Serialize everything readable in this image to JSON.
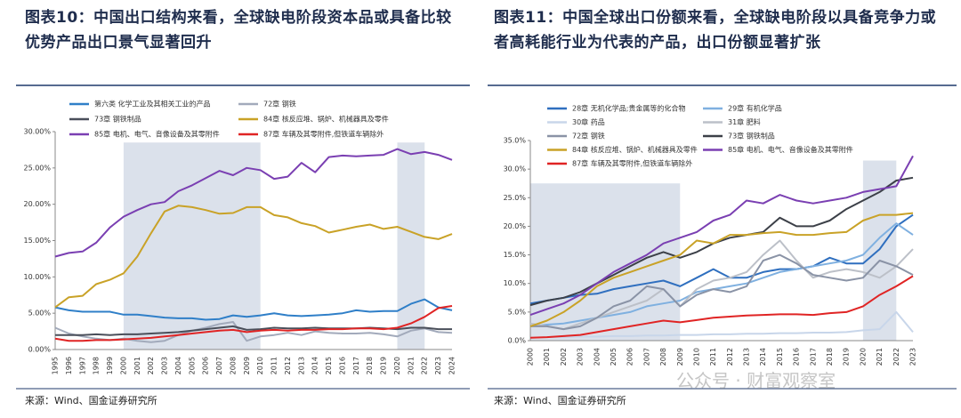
{
  "chart_data": [
    {
      "type": "line",
      "title": "图表10：中国出口结构来看，全球缺电阶段资本品或具备比较优势产品出口景气显著回升",
      "source": "来源：Wind、国金证券研究所",
      "x": [
        1995,
        1996,
        1997,
        1998,
        1999,
        2000,
        2001,
        2002,
        2003,
        2004,
        2005,
        2006,
        2007,
        2008,
        2009,
        2010,
        2011,
        2012,
        2013,
        2014,
        2015,
        2016,
        2017,
        2018,
        2019,
        2020,
        2021,
        2022,
        2023,
        2024
      ],
      "xlim": [
        1995,
        2024
      ],
      "ylim": [
        0,
        30
      ],
      "yticks": [
        {
          "value": 0,
          "label": "0.00%"
        },
        {
          "value": 5,
          "label": "5.00%"
        },
        {
          "value": 10,
          "label": "10.00%"
        },
        {
          "value": 15,
          "label": "15.00%"
        },
        {
          "value": 20,
          "label": "20.00%"
        },
        {
          "value": 25,
          "label": "25.00%"
        },
        {
          "value": 30,
          "label": "30.00%"
        }
      ],
      "shaded": [
        {
          "from": 2000,
          "to": 2010,
          "top": 28.5
        },
        {
          "from": 2020,
          "to": 2022,
          "top": 28.5
        }
      ],
      "series": [
        {
          "name": "第六类 化学工业及其相关工业的产品",
          "color": "#2f7fc8",
          "values": [
            5.8,
            5.4,
            5.2,
            5.2,
            5.2,
            4.8,
            4.8,
            4.6,
            4.4,
            4.3,
            4.3,
            4.1,
            4.2,
            4.7,
            4.5,
            4.7,
            5.0,
            4.7,
            4.6,
            4.7,
            4.8,
            5.0,
            5.4,
            5.2,
            5.3,
            5.3,
            6.3,
            6.9,
            5.8,
            5.4
          ]
        },
        {
          "name": "72章 钢铁",
          "color": "#a2aabb",
          "values": [
            3.0,
            2.2,
            1.8,
            1.5,
            1.3,
            1.5,
            1.2,
            1.0,
            1.2,
            2.0,
            2.6,
            3.0,
            3.5,
            3.8,
            1.2,
            1.8,
            2.0,
            2.3,
            2.0,
            2.5,
            2.3,
            2.2,
            2.2,
            2.3,
            2.1,
            1.8,
            2.6,
            2.9,
            2.4,
            2.3
          ]
        },
        {
          "name": "73章 钢铁制品",
          "color": "#4a4f5a",
          "values": [
            2.0,
            2.0,
            2.0,
            2.1,
            2.0,
            2.1,
            2.1,
            2.2,
            2.3,
            2.4,
            2.6,
            2.8,
            3.0,
            3.2,
            2.7,
            2.8,
            3.0,
            2.9,
            2.9,
            3.0,
            2.9,
            2.9,
            2.9,
            3.0,
            2.9,
            2.8,
            3.0,
            3.0,
            2.8,
            2.8
          ]
        },
        {
          "name": "84章 核反应堆、锅炉、机械器具及零件",
          "color": "#c9a227",
          "values": [
            5.8,
            7.2,
            7.4,
            9.0,
            9.6,
            10.5,
            12.8,
            16.0,
            19.0,
            19.8,
            19.6,
            19.2,
            18.7,
            18.8,
            19.6,
            19.6,
            18.5,
            18.2,
            17.4,
            17.0,
            16.1,
            16.5,
            16.9,
            17.2,
            16.6,
            16.9,
            16.2,
            15.5,
            15.2,
            15.9
          ]
        },
        {
          "name": "85章 电机、电气、音像设备及其零附件",
          "color": "#7a3fb2",
          "values": [
            12.8,
            13.3,
            13.5,
            14.7,
            16.8,
            18.3,
            19.2,
            20.0,
            20.3,
            21.8,
            22.6,
            23.6,
            24.6,
            24.0,
            25.0,
            24.7,
            23.5,
            23.8,
            25.7,
            24.4,
            26.5,
            26.7,
            26.6,
            26.7,
            26.8,
            27.6,
            26.9,
            27.2,
            26.8,
            26.1
          ]
        },
        {
          "name": "87章 车辆及其零附件,但铁道车辆除外",
          "color": "#e02424",
          "values": [
            1.5,
            1.2,
            1.2,
            1.3,
            1.3,
            1.4,
            1.5,
            1.6,
            1.8,
            2.0,
            2.2,
            2.4,
            2.6,
            2.7,
            2.4,
            2.6,
            2.7,
            2.6,
            2.7,
            2.7,
            2.8,
            2.8,
            2.9,
            2.9,
            2.8,
            3.0,
            3.6,
            4.5,
            5.7,
            6.0
          ]
        }
      ]
    },
    {
      "type": "line",
      "title": "图表11：中国全球出口份额来看，全球缺电阶段以具备竞争力或者高耗能行业为代表的产品，出口份额显著扩张",
      "source": "来源：Wind、国金证券研究所",
      "x": [
        2000,
        2001,
        2002,
        2003,
        2004,
        2005,
        2006,
        2007,
        2008,
        2009,
        2010,
        2011,
        2012,
        2013,
        2014,
        2015,
        2016,
        2017,
        2018,
        2019,
        2020,
        2021,
        2022,
        2023
      ],
      "xlim": [
        2000,
        2023
      ],
      "ylim": [
        0,
        35
      ],
      "yticks": [
        {
          "value": 0,
          "label": "0.0%"
        },
        {
          "value": 5,
          "label": "5.0%"
        },
        {
          "value": 10,
          "label": "10.0%"
        },
        {
          "value": 15,
          "label": "15.0%"
        },
        {
          "value": 20,
          "label": "20.0%"
        },
        {
          "value": 25,
          "label": "25.0%"
        },
        {
          "value": 30,
          "label": "30.0%"
        },
        {
          "value": 35,
          "label": "35.0%"
        }
      ],
      "shaded": [
        {
          "from": 2000,
          "to": 2009,
          "top": 27.5
        },
        {
          "from": 2020,
          "to": 2022,
          "top": 31.5
        }
      ],
      "series": [
        {
          "name": "28章 无机化学品;贵金属等的化合物",
          "color": "#2f6fbf",
          "values": [
            6.5,
            7.0,
            7.5,
            8.0,
            8.2,
            9.0,
            9.5,
            10.0,
            10.5,
            9.5,
            11.0,
            12.5,
            11.0,
            11.0,
            12.0,
            12.5,
            12.5,
            13.0,
            14.5,
            13.5,
            13.5,
            16.0,
            20.0,
            22.0
          ]
        },
        {
          "name": "29章 有机化学品",
          "color": "#7fb0e0",
          "values": [
            2.5,
            2.8,
            3.0,
            3.5,
            4.0,
            4.5,
            5.0,
            6.0,
            6.5,
            7.0,
            8.5,
            9.0,
            9.5,
            10.0,
            11.0,
            12.0,
            12.5,
            13.0,
            13.5,
            14.0,
            15.0,
            18.0,
            20.5,
            18.5
          ]
        },
        {
          "name": "30章 药品",
          "color": "#c8d6ea",
          "values": [
            0.5,
            0.6,
            0.6,
            0.7,
            0.7,
            0.8,
            0.8,
            0.9,
            0.9,
            1.0,
            1.0,
            1.1,
            1.1,
            1.2,
            1.2,
            1.3,
            1.3,
            1.4,
            1.4,
            1.5,
            1.8,
            2.0,
            5.0,
            1.5
          ]
        },
        {
          "name": "31章 肥料",
          "color": "#bcc0c8",
          "values": [
            3.0,
            2.5,
            2.0,
            3.0,
            4.0,
            5.0,
            6.0,
            7.0,
            9.0,
            6.0,
            9.0,
            10.5,
            11.0,
            12.0,
            15.0,
            17.5,
            14.0,
            11.0,
            12.0,
            12.5,
            12.0,
            11.0,
            13.0,
            16.0
          ]
        },
        {
          "name": "72章 钢铁",
          "color": "#8a93a6",
          "values": [
            2.5,
            2.5,
            2.0,
            2.5,
            4.0,
            6.0,
            7.0,
            9.5,
            9.0,
            6.0,
            8.0,
            9.0,
            8.5,
            9.5,
            14.0,
            15.0,
            13.5,
            11.5,
            11.0,
            10.5,
            11.0,
            14.0,
            13.0,
            11.5
          ]
        },
        {
          "name": "73章 钢铁制品",
          "color": "#3c4048",
          "values": [
            6.2,
            7.0,
            7.5,
            8.5,
            10.0,
            11.5,
            13.0,
            14.5,
            15.5,
            14.5,
            15.5,
            17.0,
            18.0,
            18.5,
            19.0,
            21.5,
            20.0,
            20.0,
            21.0,
            23.0,
            24.5,
            26.0,
            28.0,
            28.5
          ]
        },
        {
          "name": "84章 核反应堆、锅炉、机械器具及零件",
          "color": "#c9a227",
          "values": [
            2.5,
            3.5,
            5.0,
            7.0,
            9.5,
            11.0,
            12.0,
            13.0,
            14.0,
            15.0,
            17.5,
            17.0,
            18.5,
            18.5,
            18.8,
            19.0,
            18.5,
            18.5,
            18.8,
            19.0,
            21.0,
            22.0,
            22.0,
            22.3
          ]
        },
        {
          "name": "85章 电机、电气、音像设备及其零附件",
          "color": "#7a3fb2",
          "values": [
            4.5,
            5.5,
            6.5,
            8.0,
            10.0,
            12.0,
            13.5,
            15.0,
            17.0,
            18.0,
            19.0,
            21.0,
            22.0,
            24.5,
            24.0,
            25.5,
            24.5,
            24.0,
            24.5,
            25.0,
            26.0,
            26.5,
            27.0,
            32.3
          ]
        },
        {
          "name": "87章 车辆及其零附件,但铁道车辆除外",
          "color": "#e02424",
          "values": [
            0.5,
            0.6,
            0.8,
            1.0,
            1.5,
            2.0,
            2.5,
            3.0,
            3.5,
            3.2,
            3.6,
            4.0,
            4.2,
            4.4,
            4.5,
            4.6,
            4.6,
            4.5,
            4.8,
            5.0,
            6.0,
            8.0,
            9.5,
            11.3
          ]
        }
      ]
    }
  ],
  "watermark": "公众号 · 财富观察室"
}
